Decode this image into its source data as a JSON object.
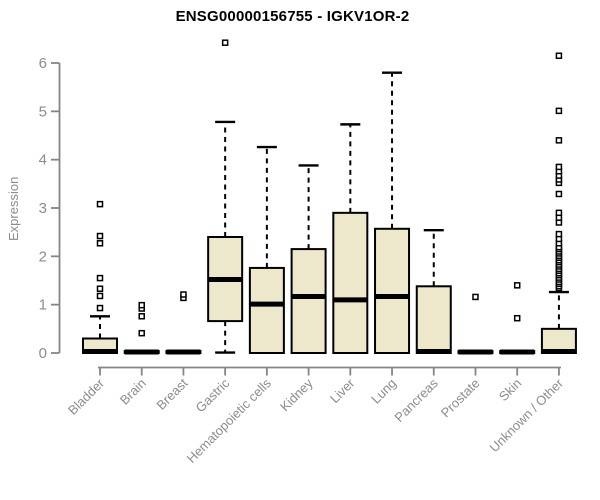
{
  "chart_data": {
    "type": "boxplot",
    "title": "ENSG00000156755 - IGKV1OR-2",
    "ylabel": "Expression",
    "xlabel": "",
    "ylim": [
      0,
      6
    ],
    "yticks": [
      0,
      1,
      2,
      3,
      4,
      5,
      6
    ],
    "grid": false,
    "legend": "none",
    "colors": {
      "box_fill": "#EDE7CC",
      "box_border": "#000000",
      "whisker": "#000000",
      "outlier_fill": "#FFFFFF",
      "axis": "#858585",
      "tick_text": "#8C8C8C",
      "title_text": "#000000"
    },
    "categories": [
      "Bladder",
      "Brain",
      "Breast",
      "Gastric",
      "Hematopoietic cells",
      "Kidney",
      "Liver",
      "Lung",
      "Pancreas",
      "Prostate",
      "Skin",
      "Unknown / Other"
    ],
    "boxes": [
      {
        "name": "Bladder",
        "whisker_low": 0,
        "q1": 0,
        "median": 0.03,
        "q3": 0.3,
        "whisker_high": 0.76,
        "outliers": [
          0.93,
          1.18,
          1.33,
          1.55,
          2.27,
          2.42,
          3.08
        ]
      },
      {
        "name": "Brain",
        "whisker_low": 0,
        "q1": 0,
        "median": 0.02,
        "q3": 0.04,
        "whisker_high": 0.04,
        "outliers": [
          0.41,
          0.76,
          0.92,
          0.99
        ]
      },
      {
        "name": "Breast",
        "whisker_low": 0,
        "q1": 0,
        "median": 0.02,
        "q3": 0.04,
        "whisker_high": 0.04,
        "outliers": [
          1.14,
          1.21
        ]
      },
      {
        "name": "Gastric",
        "whisker_low": 0.01,
        "q1": 0.66,
        "median": 1.52,
        "q3": 2.4,
        "whisker_high": 4.78,
        "outliers": [
          6.42
        ]
      },
      {
        "name": "Hematopoietic cells",
        "whisker_low": 0,
        "q1": 0,
        "median": 1.01,
        "q3": 1.76,
        "whisker_high": 4.26,
        "outliers": []
      },
      {
        "name": "Kidney",
        "whisker_low": 0,
        "q1": 0,
        "median": 1.17,
        "q3": 2.15,
        "whisker_high": 3.88,
        "outliers": []
      },
      {
        "name": "Liver",
        "whisker_low": 0,
        "q1": 0,
        "median": 1.1,
        "q3": 2.9,
        "whisker_high": 4.73,
        "outliers": []
      },
      {
        "name": "Lung",
        "whisker_low": 0,
        "q1": 0,
        "median": 1.17,
        "q3": 2.57,
        "whisker_high": 5.8,
        "outliers": []
      },
      {
        "name": "Pancreas",
        "whisker_low": 0,
        "q1": 0,
        "median": 0.03,
        "q3": 1.38,
        "whisker_high": 2.54,
        "outliers": []
      },
      {
        "name": "Prostate",
        "whisker_low": 0,
        "q1": 0,
        "median": 0.02,
        "q3": 0.04,
        "whisker_high": 0.04,
        "outliers": [
          1.16
        ]
      },
      {
        "name": "Skin",
        "whisker_low": 0,
        "q1": 0,
        "median": 0.02,
        "q3": 0.04,
        "whisker_high": 0.04,
        "outliers": [
          0.72,
          1.4
        ]
      },
      {
        "name": "Unknown / Other",
        "whisker_low": 0,
        "q1": 0,
        "median": 0.03,
        "q3": 0.5,
        "whisker_high": 1.26,
        "outliers": [
          1.34,
          1.38,
          1.43,
          1.47,
          1.52,
          1.56,
          1.61,
          1.65,
          1.7,
          1.74,
          1.79,
          1.83,
          1.88,
          1.92,
          1.97,
          2.01,
          2.06,
          2.1,
          2.15,
          2.19,
          2.27,
          2.36,
          2.46,
          2.7,
          2.8,
          2.9,
          3.29,
          3.52,
          3.59,
          3.67,
          3.76,
          3.85,
          4.4,
          5.01,
          6.15
        ]
      }
    ]
  }
}
